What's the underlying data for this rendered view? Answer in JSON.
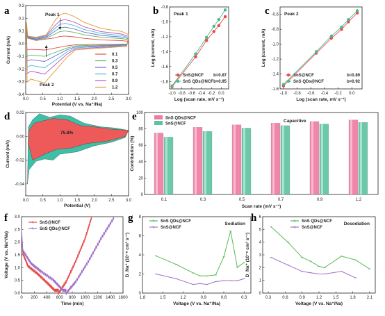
{
  "chart_data": [
    {
      "panel": "a",
      "type": "line",
      "xlabel": "Potential (V vs. Na⁺/Na)",
      "ylabel": "Current (mA)",
      "xlim": [
        0,
        3.0
      ],
      "ylim": [
        -0.4,
        0.3
      ],
      "xticks": [
        "0.0",
        "0.5",
        "1.0",
        "1.5",
        "2.0",
        "2.5",
        "3.0"
      ],
      "yticks": [
        "-0.4",
        "-0.3",
        "-0.2",
        "-0.1",
        "0.0",
        "0.1",
        "0.2",
        "0.3"
      ],
      "annotations": [
        "Peak 1",
        "Peak 2"
      ],
      "legend_position": "lower-right",
      "series": [
        {
          "name": "0.1",
          "color": "#e84a4a",
          "anodic_peak": 0.06,
          "cathodic_peak": -0.05
        },
        {
          "name": "0.3",
          "color": "#55bb55",
          "anodic_peak": 0.1,
          "cathodic_peak": -0.1
        },
        {
          "name": "0.5",
          "color": "#6a6adf",
          "anodic_peak": 0.13,
          "cathodic_peak": -0.14
        },
        {
          "name": "0.7",
          "color": "#44bbcc",
          "anodic_peak": 0.16,
          "cathodic_peak": -0.19
        },
        {
          "name": "0.9",
          "color": "#c055c0",
          "anodic_peak": 0.19,
          "cathodic_peak": -0.24
        },
        {
          "name": "1.2",
          "color": "#dd9933",
          "anodic_peak": 0.24,
          "cathodic_peak": -0.31
        }
      ]
    },
    {
      "panel": "b",
      "type": "scatter",
      "title": "Peak 1",
      "xlabel": "Log (scan rate, mV s⁻¹)",
      "ylabel": "Log (current, mA)",
      "xlim": [
        -1.05,
        0.15
      ],
      "ylim": [
        -1.9,
        -0.8
      ],
      "xticks": [
        "-1.0",
        "-0.8",
        "-0.6",
        "-0.4",
        "-0.2",
        "0.0"
      ],
      "yticks": [
        "-1.8",
        "-1.6",
        "-1.4",
        "-1.2",
        "-1.0",
        "-0.8"
      ],
      "x": [
        -1.0,
        -0.52,
        -0.3,
        -0.15,
        -0.05,
        0.08
      ],
      "series": [
        {
          "name": "SnS@NCF",
          "b_label": "b=0.87",
          "color": "#e84a4a",
          "values": [
            -1.87,
            -1.47,
            -1.25,
            -1.13,
            -1.05,
            -0.93
          ]
        },
        {
          "name": "SnS QDs@NCF",
          "b_label": "b=0.95",
          "color": "#4cb88c",
          "values": [
            -1.86,
            -1.43,
            -1.21,
            -1.06,
            -0.97,
            -0.84
          ]
        }
      ]
    },
    {
      "panel": "c",
      "type": "scatter",
      "title": "Peak 2",
      "xlabel": "Log (scan rate, mV s⁻¹)",
      "ylabel": "Log (current, mA)",
      "xlim": [
        -1.05,
        0.15
      ],
      "ylim": [
        -1.6,
        -0.5
      ],
      "xticks": [
        "-1.0",
        "-0.8",
        "-0.6",
        "-0.4",
        "-0.2",
        "0.0"
      ],
      "yticks": [
        "-1.6",
        "-1.4",
        "-1.2",
        "-1.0",
        "-0.8",
        "-0.6"
      ],
      "x": [
        -1.0,
        -0.52,
        -0.3,
        -0.15,
        -0.05,
        0.08
      ],
      "series": [
        {
          "name": "SnS@NCF",
          "b_label": "b=0.89",
          "color": "#e84a4a",
          "values": [
            -1.56,
            -1.12,
            -0.92,
            -0.8,
            -0.7,
            -0.58
          ]
        },
        {
          "name": "SnS QDs@NCF",
          "b_label": "b=0.92",
          "color": "#4cb88c",
          "values": [
            -1.54,
            -1.1,
            -0.89,
            -0.77,
            -0.67,
            -0.55
          ]
        }
      ]
    },
    {
      "panel": "d",
      "type": "area",
      "xlabel": "Potential (V)",
      "ylabel": "Current (mA)",
      "xlim": [
        0,
        3.0
      ],
      "ylim": [
        -0.05,
        0.02
      ],
      "xticks": [
        "0.0",
        "0.5",
        "1.0",
        "1.5",
        "2.0",
        "2.5",
        "3.0"
      ],
      "yticks": [
        "-0.04",
        "-0.02",
        "0.00",
        "0.02"
      ],
      "annotation": "75.8%",
      "fill_total": "#3dbfa8",
      "fill_capacitive": "#ee5a5a"
    },
    {
      "panel": "e",
      "type": "bar",
      "xlabel": "Scan rate (mV s⁻¹)",
      "ylabel": "Contribution (%)",
      "ylim": [
        0,
        100
      ],
      "yticks": [
        "0",
        "20",
        "40",
        "60",
        "80",
        "100"
      ],
      "categories": [
        "0.1",
        "0.3",
        "0.5",
        "0.7",
        "0.9",
        "1.2"
      ],
      "annotation": "Capacitive",
      "series": [
        {
          "name": "SnS QDs@NCF",
          "color": "#f07aa0",
          "values": [
            75,
            82,
            85,
            87,
            89,
            91
          ]
        },
        {
          "name": "SnS@NCF",
          "color": "#5cc4a0",
          "values": [
            70,
            77,
            81,
            84,
            86,
            88
          ]
        }
      ]
    },
    {
      "panel": "f",
      "type": "line",
      "xlabel": "Time (min)",
      "ylabel": "Voltage (V vs. Na⁺/Na)",
      "xlim": [
        0,
        1600
      ],
      "ylim": [
        0,
        3.0
      ],
      "xticks": [
        "0",
        "200",
        "400",
        "600",
        "800",
        "1000",
        "1200",
        "1400",
        "1600"
      ],
      "yticks": [
        "0.0",
        "0.5",
        "1.0",
        "1.5",
        "2.0",
        "2.5",
        "3.0"
      ],
      "series": [
        {
          "name": "SnS@NCF",
          "color": "#e84a4a",
          "x": [
            0,
            20,
            100,
            250,
            400,
            520,
            580,
            700,
            850,
            1000,
            1100
          ],
          "values": [
            2.3,
            1.5,
            1.0,
            0.7,
            0.35,
            0.05,
            0.05,
            0.5,
            1.3,
            2.2,
            3.0
          ]
        },
        {
          "name": "SnS QDs@NCF",
          "color": "#a070c8",
          "x": [
            0,
            20,
            150,
            300,
            500,
            650,
            700,
            850,
            1050,
            1250,
            1450
          ],
          "values": [
            2.4,
            1.6,
            1.1,
            0.8,
            0.45,
            0.05,
            0.05,
            0.5,
            1.3,
            2.2,
            3.0
          ]
        }
      ]
    },
    {
      "panel": "g",
      "type": "line",
      "annotation": "Sodiation",
      "xlabel": "Voltage (V vs. Na⁺/Na)",
      "ylabel": "D_Na⁺ (10⁻⁸ cm² s⁻¹)",
      "xlim": [
        1.8,
        0.2
      ],
      "ylim": [
        0,
        8
      ],
      "xticks": [
        "1.8",
        "1.5",
        "1.2",
        "0.9",
        "0.6",
        "0.3"
      ],
      "yticks": [
        "0",
        "2",
        "4",
        "6",
        "8"
      ],
      "series": [
        {
          "name": "SnS QDs@NCF",
          "color": "#55bb55",
          "x": [
            1.6,
            1.3,
            1.05,
            0.95,
            0.85,
            0.72,
            0.6,
            0.5,
            0.4,
            0.3
          ],
          "values": [
            3.9,
            3.0,
            2.1,
            1.8,
            1.8,
            1.9,
            3.8,
            6.5,
            2.7,
            3.2
          ]
        },
        {
          "name": "SnS@NCF",
          "color": "#a070c8",
          "x": [
            1.6,
            1.3,
            1.05,
            0.95,
            0.85,
            0.72,
            0.6,
            0.5,
            0.4,
            0.3
          ],
          "values": [
            2.0,
            1.5,
            0.9,
            1.0,
            0.9,
            1.2,
            1.3,
            1.3,
            1.3,
            1.5
          ]
        }
      ]
    },
    {
      "panel": "h",
      "type": "line",
      "annotation": "Desodiation",
      "xlabel": "Voltage (V vs. Na⁺/Na)",
      "ylabel": "D_Na⁺ (10⁻⁸ cm² s⁻¹)",
      "xlim": [
        0.2,
        2.2
      ],
      "ylim": [
        0,
        6
      ],
      "xticks": [
        "0.3",
        "0.6",
        "0.9",
        "1.2",
        "1.5",
        "1.8",
        "2.1"
      ],
      "yticks": [
        "0",
        "1",
        "2",
        "3",
        "4",
        "5",
        "6"
      ],
      "series": [
        {
          "name": "SnS QDs@NCF",
          "color": "#55bb55",
          "x": [
            0.35,
            0.65,
            0.9,
            1.05,
            1.2,
            1.3,
            1.6,
            1.85,
            2.1
          ],
          "values": [
            5.2,
            4.0,
            2.8,
            2.5,
            2.1,
            2.0,
            2.9,
            2.6,
            1.9
          ]
        },
        {
          "name": "SnS@NCF",
          "color": "#a070c8",
          "x": [
            0.35,
            0.65,
            0.9,
            1.05,
            1.2,
            1.3,
            1.6,
            1.85
          ],
          "values": [
            2.8,
            2.2,
            1.7,
            1.6,
            1.5,
            1.5,
            1.7,
            1.2
          ]
        }
      ]
    }
  ]
}
